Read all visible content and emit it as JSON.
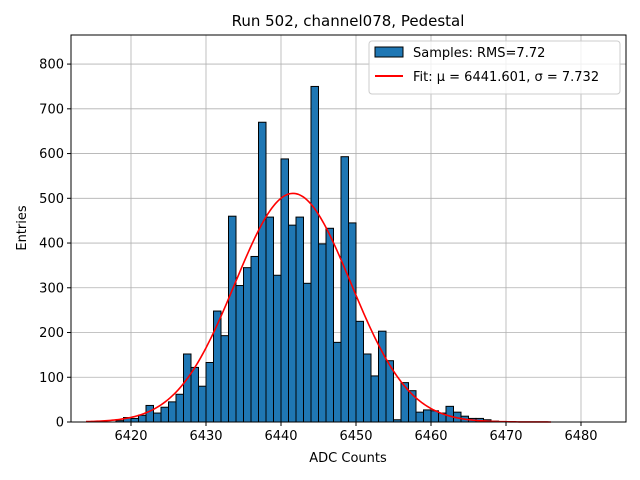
{
  "chart_data": {
    "type": "bar",
    "title": "Run 502, channel078, Pedestal",
    "xlabel": "ADC Counts",
    "ylabel": "Entries",
    "xlim": [
      6412,
      6486
    ],
    "ylim": [
      0,
      865
    ],
    "xticks": [
      6420,
      6430,
      6440,
      6450,
      6460,
      6470,
      6480
    ],
    "yticks": [
      0,
      100,
      200,
      300,
      400,
      500,
      600,
      700,
      800
    ],
    "grid": true,
    "legend_position": "top-right",
    "bin_width": 1,
    "series": [
      {
        "name": "Samples: RMS=7.72",
        "kind": "histogram",
        "color": "#1f77b4",
        "edgecolor": "#000000",
        "bins": [
          [
            6418,
            3
          ],
          [
            6419,
            10
          ],
          [
            6420,
            8
          ],
          [
            6421,
            15
          ],
          [
            6422,
            37
          ],
          [
            6423,
            20
          ],
          [
            6424,
            33
          ],
          [
            6425,
            45
          ],
          [
            6426,
            62
          ],
          [
            6427,
            152
          ],
          [
            6428,
            122
          ],
          [
            6429,
            80
          ],
          [
            6430,
            133
          ],
          [
            6431,
            248
          ],
          [
            6432,
            193
          ],
          [
            6433,
            460
          ],
          [
            6434,
            305
          ],
          [
            6435,
            345
          ],
          [
            6436,
            370
          ],
          [
            6437,
            670
          ],
          [
            6438,
            458
          ],
          [
            6439,
            328
          ],
          [
            6440,
            588
          ],
          [
            6441,
            440
          ],
          [
            6442,
            458
          ],
          [
            6443,
            310
          ],
          [
            6444,
            750
          ],
          [
            6445,
            398
          ],
          [
            6446,
            433
          ],
          [
            6447,
            178
          ],
          [
            6448,
            593
          ],
          [
            6449,
            445
          ],
          [
            6450,
            225
          ],
          [
            6451,
            152
          ],
          [
            6452,
            103
          ],
          [
            6453,
            203
          ],
          [
            6454,
            137
          ],
          [
            6455,
            5
          ],
          [
            6456,
            88
          ],
          [
            6457,
            70
          ],
          [
            6458,
            22
          ],
          [
            6459,
            27
          ],
          [
            6460,
            25
          ],
          [
            6461,
            20
          ],
          [
            6462,
            35
          ],
          [
            6463,
            22
          ],
          [
            6464,
            13
          ],
          [
            6465,
            8
          ],
          [
            6466,
            8
          ],
          [
            6467,
            5
          ],
          [
            6468,
            2
          ]
        ]
      },
      {
        "name": "Fit: μ = 6441.601, σ = 7.732",
        "kind": "gaussian-fit",
        "color": "#ff0000",
        "mu": 6441.601,
        "sigma": 7.732,
        "amplitude": 511,
        "x_range": [
          6414,
          6476
        ]
      }
    ]
  }
}
